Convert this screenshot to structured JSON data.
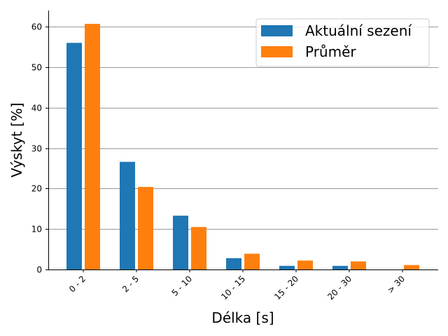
{
  "chart_data": {
    "type": "bar",
    "categories": [
      "0 - 2",
      "2 - 5",
      "5 - 10",
      "10 - 15",
      "15 - 20",
      "20 - 30",
      "> 30"
    ],
    "series": [
      {
        "name": "Aktuální sezení",
        "color": "#1f77b4",
        "values": [
          56.0,
          26.6,
          13.3,
          2.8,
          0.9,
          0.9,
          0.0
        ]
      },
      {
        "name": "Průměr",
        "color": "#ff7f0e",
        "values": [
          60.7,
          20.4,
          10.5,
          3.9,
          2.2,
          2.0,
          1.1
        ]
      }
    ],
    "xlabel": "Délka [s]",
    "ylabel": "Výskyt [%]",
    "ylim": [
      0,
      64
    ],
    "yticks": [
      0,
      10,
      20,
      30,
      40,
      50,
      60
    ],
    "grid": "horizontal",
    "legend_position": "top-right"
  }
}
